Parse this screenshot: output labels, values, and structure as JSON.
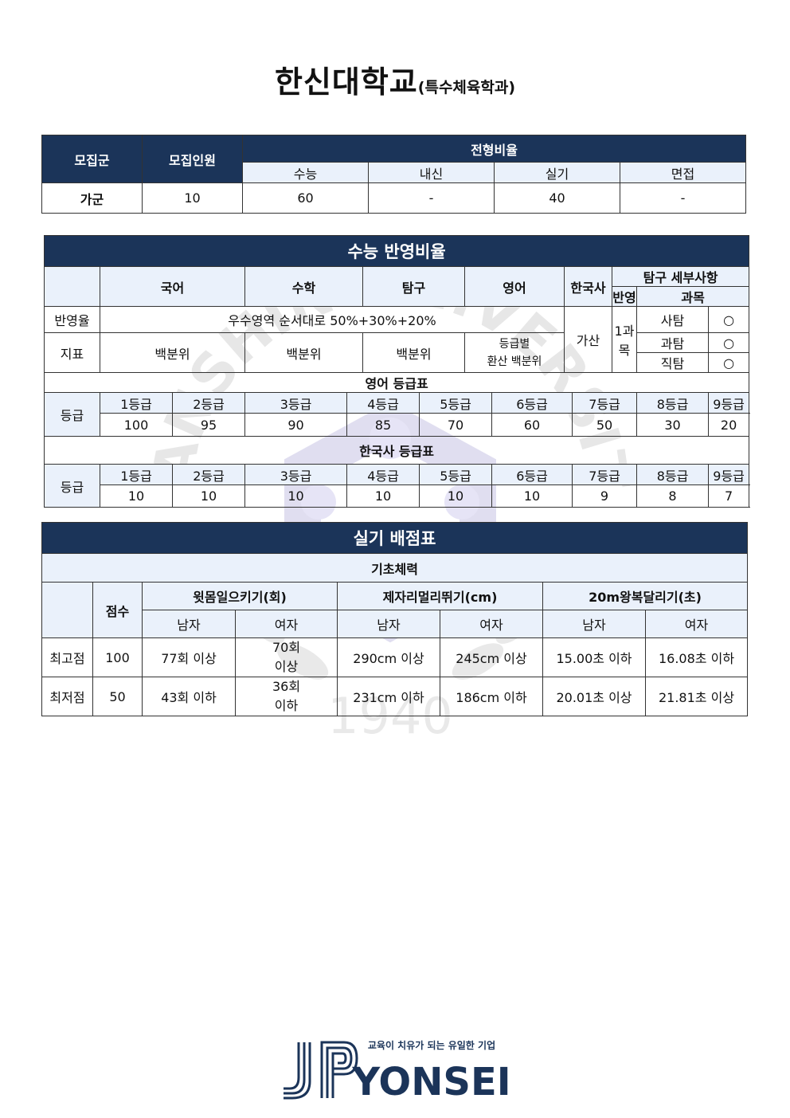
{
  "title": {
    "main": "한신대학교",
    "sub": "(특수체육학과)"
  },
  "recruit": {
    "headers": {
      "group": "모집군",
      "count": "모집인원",
      "ratio": "전형비율"
    },
    "sub_headers": [
      "수능",
      "내신",
      "실기",
      "면접"
    ],
    "row": {
      "group": "가군",
      "count": "10",
      "values": [
        "60",
        "-",
        "40",
        "-"
      ]
    }
  },
  "csat": {
    "title": "수능 반영비율",
    "subjects": [
      "국어",
      "수학",
      "탐구",
      "영어"
    ],
    "history": "한국사",
    "inquiry_detail": {
      "title": "탐구 세부사항",
      "reflect": "반영",
      "subject": "과목"
    },
    "rate_label": "반영율",
    "rate_value": "우수영역 순서대로 50%+30%+20%",
    "index_label": "지표",
    "index_values": [
      "백분위",
      "백분위",
      "백분위"
    ],
    "english_index_line1": "등급별",
    "english_index_line2": "환산 백분위",
    "history_value": "가산",
    "inquiry_count": "1과목",
    "inquiry_items": [
      {
        "name": "사탐",
        "mark": "○"
      },
      {
        "name": "과탐",
        "mark": "○"
      },
      {
        "name": "직탐",
        "mark": "○"
      }
    ],
    "english_table_title": "영어 등급표",
    "grade_label": "등급",
    "grades": [
      "1등급",
      "2등급",
      "3등급",
      "4등급",
      "5등급",
      "6등급",
      "7등급",
      "8등급",
      "9등급"
    ],
    "english_scores": [
      "100",
      "95",
      "90",
      "85",
      "70",
      "60",
      "50",
      "30",
      "20"
    ],
    "history_table_title": "한국사 등급표",
    "history_scores": [
      "10",
      "10",
      "10",
      "10",
      "10",
      "10",
      "9",
      "8",
      "7"
    ]
  },
  "practical": {
    "title": "실기 배점표",
    "section": "기초체력",
    "score_header": "점수",
    "events": [
      "윗몸일으키기(회)",
      "제자리멀리뛰기(cm)",
      "20m왕복달리기(초)"
    ],
    "male": "남자",
    "female": "여자",
    "rows": [
      {
        "label": "최고점",
        "score": "100",
        "values": [
          "77회 이상",
          "70회",
          "이상",
          "290cm 이상",
          "245cm 이상",
          "15.00초 이하",
          "16.08초 이하"
        ]
      },
      {
        "label": "최저점",
        "score": "50",
        "values": [
          "43회 이하",
          "36회",
          "이하",
          "231cm 이하",
          "186cm 이하",
          "20.01초 이상",
          "21.81초 이상"
        ]
      }
    ]
  },
  "watermark": {
    "text": "HANSHIN UNIVERSITY",
    "year": "1940"
  },
  "footer": {
    "slogan": "교육이 치유가 되는 유일한 기업",
    "brand": "YONSEI",
    "logo_letters": "JP"
  },
  "colors": {
    "navy": "#1b3459",
    "light_blue": "#eaf1fb",
    "watermark": "#5a4fb0"
  }
}
